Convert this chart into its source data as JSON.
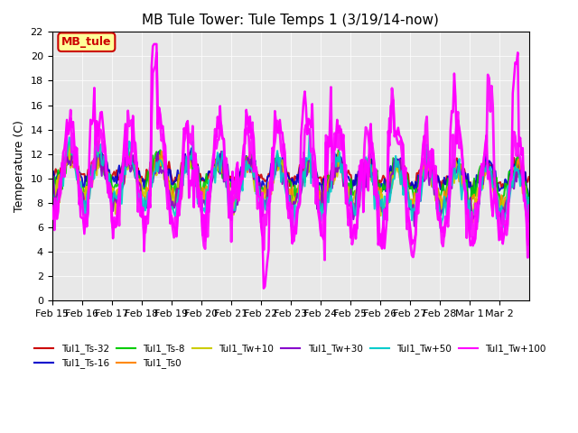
{
  "title": "MB Tule Tower: Tule Temps 1 (3/19/14-now)",
  "ylabel": "Temperature (C)",
  "ylim": [
    0,
    22
  ],
  "yticks": [
    0,
    2,
    4,
    6,
    8,
    10,
    12,
    14,
    16,
    18,
    20,
    22
  ],
  "xlabel_dates": [
    "Feb 15",
    "Feb 16",
    "Feb 17",
    "Feb 18",
    "Feb 19",
    "Feb 20",
    "Feb 21",
    "Feb 22",
    "Feb 23",
    "Feb 24",
    "Feb 25",
    "Feb 26",
    "Feb 27",
    "Feb 28",
    "Mar 1",
    "Mar 2"
  ],
  "legend_box_label": "MB_tule",
  "legend_box_facecolor": "#ffff99",
  "legend_box_edgecolor": "#cc0000",
  "legend_box_textcolor": "#cc0000",
  "bg_color": "#e8e8e8",
  "series": [
    {
      "label": "Tul1_Ts-32",
      "color": "#cc0000",
      "lw": 1.5
    },
    {
      "label": "Tul1_Ts-16",
      "color": "#0000cc",
      "lw": 1.5
    },
    {
      "label": "Tul1_Ts-8",
      "color": "#00cc00",
      "lw": 1.5
    },
    {
      "label": "Tul1_Ts0",
      "color": "#ff8800",
      "lw": 1.5
    },
    {
      "label": "Tul1_Tw+10",
      "color": "#cccc00",
      "lw": 1.5
    },
    {
      "label": "Tul1_Tw+30",
      "color": "#8800cc",
      "lw": 1.5
    },
    {
      "label": "Tul1_Tw+50",
      "color": "#00cccc",
      "lw": 1.5
    },
    {
      "label": "Tul1_Tw+100",
      "color": "#ff00ff",
      "lw": 2.0
    }
  ]
}
